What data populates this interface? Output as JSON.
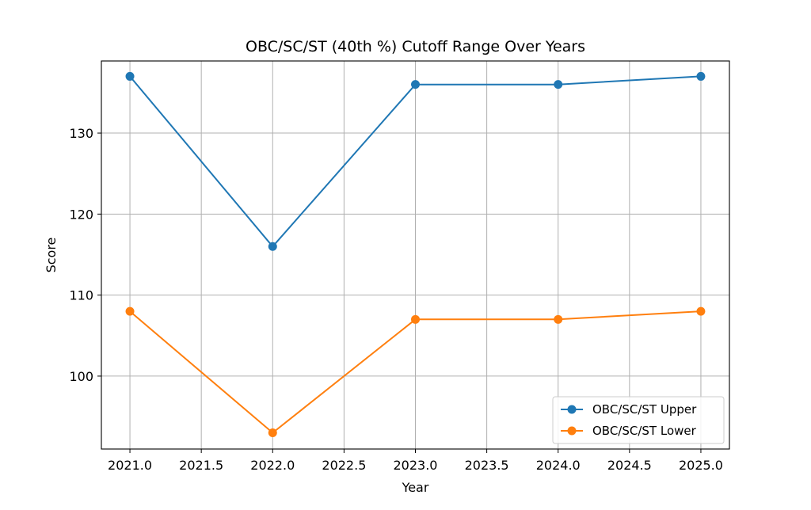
{
  "chart_data": {
    "type": "line",
    "title": "OBC/SC/ST (40th %) Cutoff Range Over Years",
    "xlabel": "Year",
    "ylabel": "Score",
    "x": [
      2021,
      2022,
      2023,
      2024,
      2025
    ],
    "series": [
      {
        "name": "OBC/SC/ST Upper",
        "values": [
          137,
          116,
          136,
          136,
          137
        ],
        "color": "#1f77b4",
        "marker": "circle"
      },
      {
        "name": "OBC/SC/ST Lower",
        "values": [
          108,
          93,
          107,
          107,
          108
        ],
        "color": "#ff7f0e",
        "marker": "circle"
      }
    ],
    "xlim": [
      2020.8,
      2025.2
    ],
    "ylim": [
      91.0,
      138.9
    ],
    "xticks": [
      "2021.0",
      "2021.5",
      "2022.0",
      "2022.5",
      "2023.0",
      "2023.5",
      "2024.0",
      "2024.5",
      "2025.0"
    ],
    "xtick_values": [
      2021.0,
      2021.5,
      2022.0,
      2022.5,
      2023.0,
      2023.5,
      2024.0,
      2024.5,
      2025.0
    ],
    "yticks": [
      "100",
      "110",
      "120",
      "130"
    ],
    "ytick_values": [
      100,
      110,
      120,
      130
    ],
    "grid": true,
    "legend_position": "lower-right",
    "grid_color": "#b0b0b0"
  }
}
